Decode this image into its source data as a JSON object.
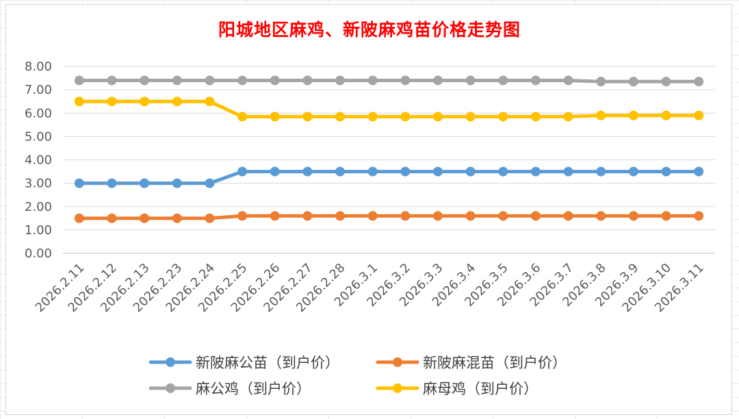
{
  "chart_data": {
    "type": "line",
    "title": "阳城地区麻鸡、新陂麻鸡苗价格走势图",
    "xlabel": "",
    "ylabel": "",
    "ylim": [
      0,
      8
    ],
    "yticks": [
      "0.00",
      "1.00",
      "2.00",
      "3.00",
      "4.00",
      "5.00",
      "6.00",
      "7.00",
      "8.00"
    ],
    "grid": true,
    "legend_position": "bottom",
    "categories": [
      "2026.2.11",
      "2026.2.12",
      "2026.2.13",
      "2026.2.23",
      "2026.2.24",
      "2026.2.25",
      "2026.2.26",
      "2026.2.27",
      "2026.2.28",
      "2026.3.1",
      "2026.3.2",
      "2026.3.3",
      "2026.3.4",
      "2026.3.5",
      "2026.3.6",
      "2026.3.7",
      "2026.3.8",
      "2026.3.9",
      "2026.3.10",
      "2026.3.11"
    ],
    "series": [
      {
        "name": "新陂麻公苗（到户价）",
        "color": "#5b9bd5",
        "values": [
          3.0,
          3.0,
          3.0,
          3.0,
          3.0,
          3.5,
          3.5,
          3.5,
          3.5,
          3.5,
          3.5,
          3.5,
          3.5,
          3.5,
          3.5,
          3.5,
          3.5,
          3.5,
          3.5,
          3.5
        ]
      },
      {
        "name": "新陂麻混苗（到户价）",
        "color": "#ed7d31",
        "values": [
          1.5,
          1.5,
          1.5,
          1.5,
          1.5,
          1.6,
          1.6,
          1.6,
          1.6,
          1.6,
          1.6,
          1.6,
          1.6,
          1.6,
          1.6,
          1.6,
          1.6,
          1.6,
          1.6,
          1.6
        ]
      },
      {
        "name": "麻公鸡（到户价）",
        "color": "#a5a5a5",
        "values": [
          7.4,
          7.4,
          7.4,
          7.4,
          7.4,
          7.4,
          7.4,
          7.4,
          7.4,
          7.4,
          7.4,
          7.4,
          7.4,
          7.4,
          7.4,
          7.4,
          7.35,
          7.35,
          7.35,
          7.35
        ]
      },
      {
        "name": "麻母鸡（到户价）",
        "color": "#ffc000",
        "values": [
          6.5,
          6.5,
          6.5,
          6.5,
          6.5,
          5.85,
          5.85,
          5.85,
          5.85,
          5.85,
          5.85,
          5.85,
          5.85,
          5.85,
          5.85,
          5.85,
          5.9,
          5.9,
          5.9,
          5.9
        ]
      }
    ]
  }
}
